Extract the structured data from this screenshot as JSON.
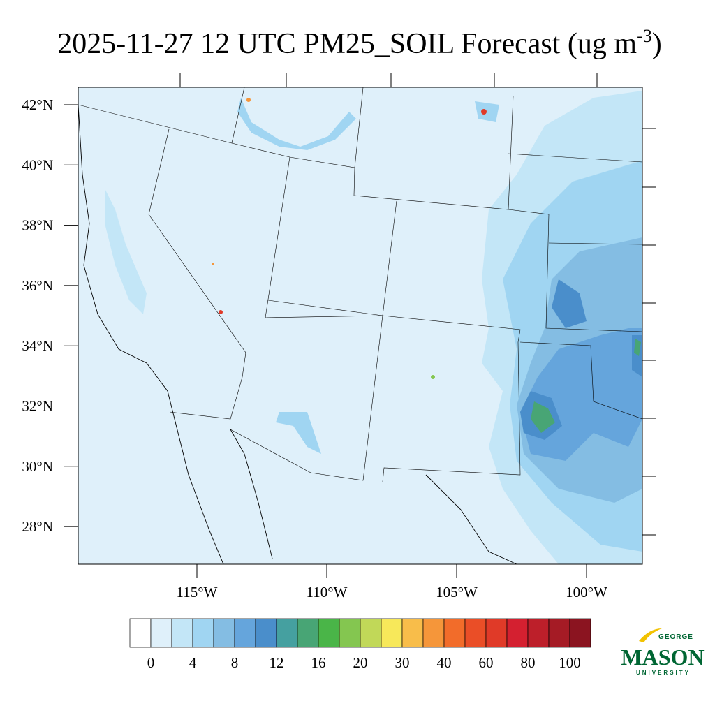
{
  "title": {
    "main": "2025-11-27 12 UTC PM25_SOIL Forecast (ug m",
    "superscript": "-3",
    "end": ")"
  },
  "lat_labels": [
    "42°N",
    "40°N",
    "38°N",
    "36°N",
    "34°N",
    "32°N",
    "30°N",
    "28°N"
  ],
  "lon_labels": [
    "115°W",
    "110°W",
    "105°W",
    "100°W"
  ],
  "colorbar": {
    "colors": [
      "#ffffff",
      "#dff0fa",
      "#c3e6f7",
      "#a0d5f2",
      "#84bde3",
      "#65a5dc",
      "#4a8ecb",
      "#45a0a0",
      "#48a575",
      "#4ab548",
      "#84c650",
      "#c1d858",
      "#f7e85a",
      "#f8bd4a",
      "#f5963a",
      "#f26c2a",
      "#ea4e27",
      "#e03a28",
      "#d42030",
      "#bd1f2a",
      "#a51b25",
      "#8b1420"
    ],
    "labels": [
      0,
      4,
      8,
      12,
      16,
      20,
      30,
      40,
      60,
      80,
      100
    ]
  },
  "logo": {
    "top": "GEORGE",
    "main": "MASON",
    "bottom": "UNIVERSITY"
  }
}
